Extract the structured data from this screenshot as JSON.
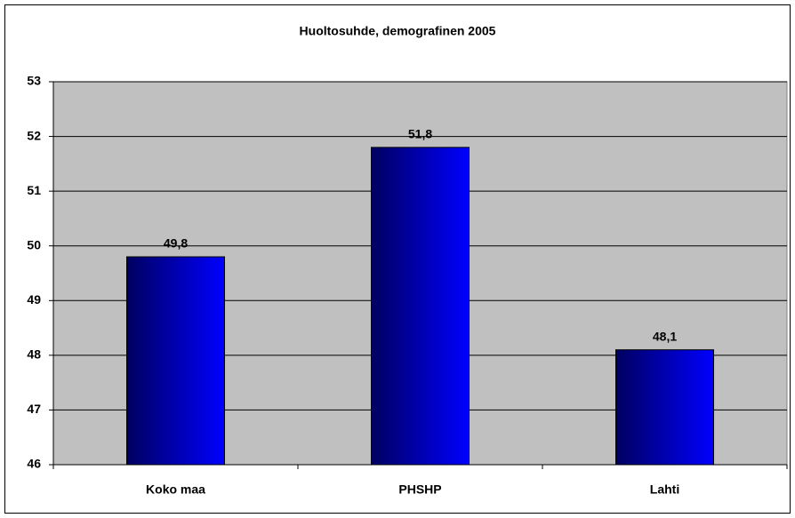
{
  "chart_data": {
    "type": "bar",
    "title": "Huoltosuhde, demografinen 2005",
    "categories": [
      "Koko maa",
      "PHSHP",
      "Lahti"
    ],
    "values": [
      49.8,
      51.8,
      48.1
    ],
    "value_labels": [
      "49,8",
      "51,8",
      "48,1"
    ],
    "color": "#0000ff",
    "ylim": [
      46,
      53
    ],
    "yticks": [
      46,
      47,
      48,
      49,
      50,
      51,
      52,
      53
    ],
    "grid": true
  }
}
